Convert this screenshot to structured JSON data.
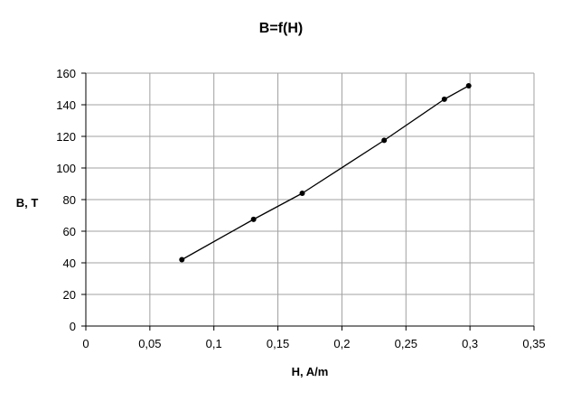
{
  "chart_data": {
    "type": "line",
    "title": "B=f(H)",
    "xlabel": "H, A/m",
    "ylabel": "B, T",
    "xlim": [
      0,
      0.35
    ],
    "ylim": [
      0,
      160
    ],
    "grid": true,
    "legend": "none",
    "x_tick_labels": [
      "0",
      "0,05",
      "0,1",
      "0,15",
      "0,2",
      "0,25",
      "0,3",
      "0,35"
    ],
    "y_tick_labels": [
      "0",
      "20",
      "40",
      "60",
      "80",
      "100",
      "120",
      "140",
      "160"
    ],
    "series": [
      {
        "x": [
          0.075,
          0.131,
          0.169,
          0.233,
          0.28,
          0.299
        ],
        "y": [
          42,
          67.5,
          84,
          117.5,
          143.5,
          152
        ],
        "color": "#000000"
      }
    ],
    "colors": {
      "grid": "#a0a0a0",
      "axis": "#000000",
      "line": "#000000",
      "background": "#ffffff"
    }
  }
}
